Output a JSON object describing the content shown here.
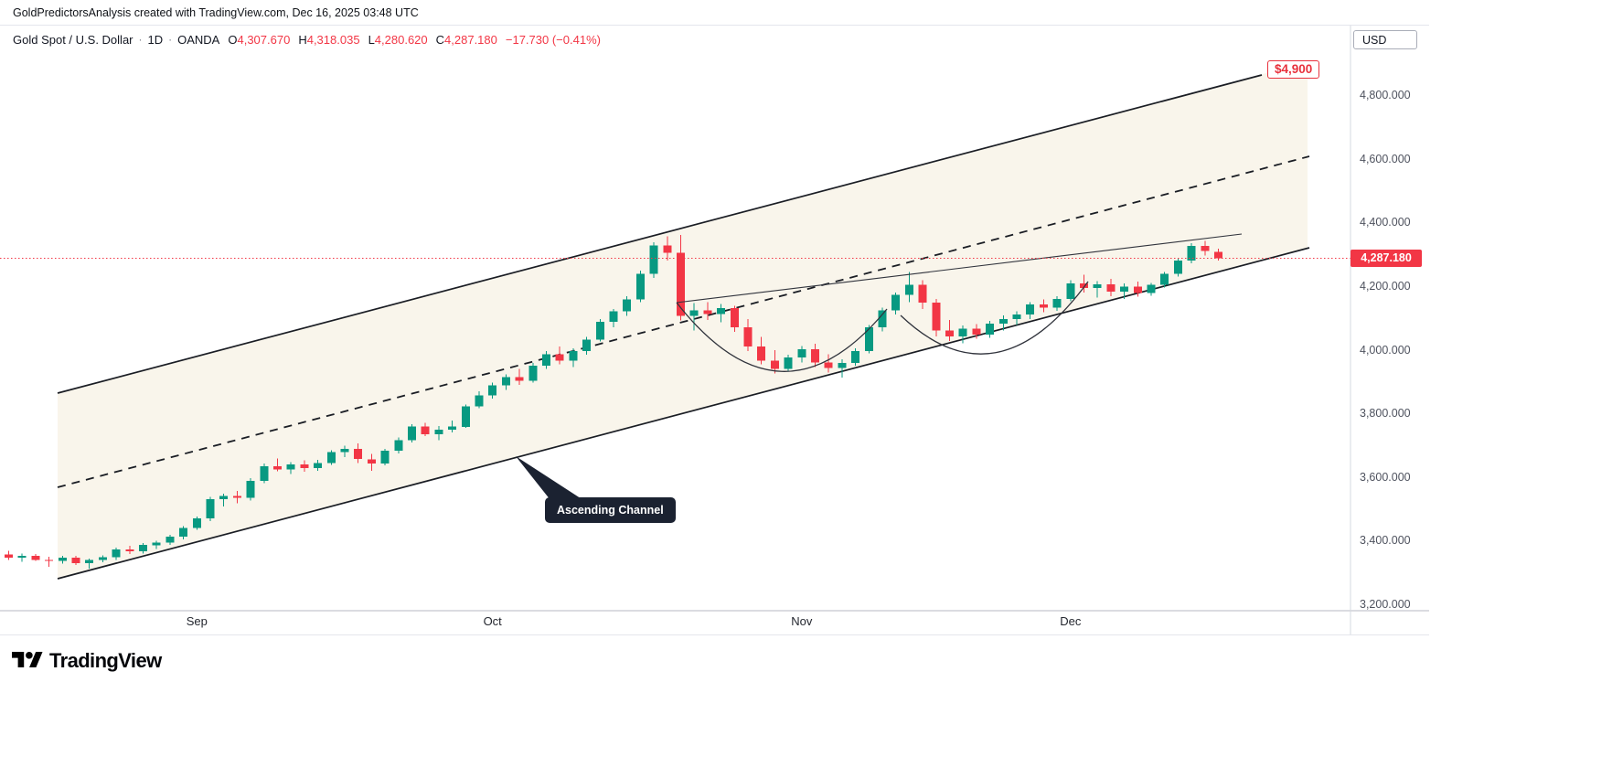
{
  "attribution": "GoldPredictorsAnalysis created with TradingView.com, Dec 16, 2025 03:48 UTC",
  "header": {
    "symbol": "Gold Spot / U.S. Dollar",
    "separator": "·",
    "interval": "1D",
    "exchange": "OANDA",
    "ohlc": [
      {
        "label": "O",
        "value": "4,307.670"
      },
      {
        "label": "H",
        "value": "4,318.035"
      },
      {
        "label": "L",
        "value": "4,280.620"
      },
      {
        "label": "C",
        "value": "4,287.180"
      }
    ],
    "change": "−17.730 (−0.41%)"
  },
  "price_axis": {
    "currency": "USD",
    "ticks": [
      {
        "price": 4800,
        "label": "4,800.000"
      },
      {
        "price": 4600,
        "label": "4,600.000"
      },
      {
        "price": 4400,
        "label": "4,400.000"
      },
      {
        "price": 4200,
        "label": "4,200.000"
      },
      {
        "price": 4000,
        "label": "4,000.000"
      },
      {
        "price": 3800,
        "label": "3,800.000"
      },
      {
        "price": 3600,
        "label": "3,600.000"
      },
      {
        "price": 3400,
        "label": "3,400.000"
      },
      {
        "price": 3200,
        "label": "3,200.000"
      }
    ],
    "last_price": {
      "value": 4287.18,
      "label": "4,287.180"
    }
  },
  "time_axis": {
    "months": [
      {
        "label": "Sep",
        "index": 14
      },
      {
        "label": "Oct",
        "index": 36
      },
      {
        "label": "Nov",
        "index": 59
      },
      {
        "label": "Dec",
        "index": 79
      }
    ]
  },
  "annotations": {
    "target_label": "$4,900",
    "channel_label": "Ascending Channel"
  },
  "footer": {
    "brand": "TradingView"
  },
  "colors": {
    "up": "#089981",
    "down": "#f23645",
    "accent_red": "#f23645",
    "line": "#1a1d24"
  },
  "chart_data": {
    "type": "candlestick",
    "symbol": "Gold Spot / U.S. Dollar (XAU/USD)",
    "exchange": "OANDA",
    "timeframe": "1D",
    "y_axis": {
      "tick_prices": [
        4800,
        4600,
        4400,
        4200,
        4000,
        3800,
        3600,
        3400,
        3200
      ],
      "visible_range": [
        3180,
        5018
      ]
    },
    "x_axis": {
      "month_labels": [
        "Sep",
        "Oct",
        "Nov",
        "Dec"
      ],
      "month_start_indices": [
        14,
        36,
        59,
        79
      ]
    },
    "last_bar": {
      "open": 4307.67,
      "high": 4318.035,
      "low": 4280.62,
      "close": 4287.18,
      "change": -17.73,
      "change_pct": -0.41
    },
    "drawings": {
      "ascending_channel": {
        "label": "Ascending Channel",
        "upper_line_prices": [
          3864,
          4863
        ],
        "midline_prices": [
          3568,
          4608
        ],
        "lower_line_prices": [
          3281,
          4320
        ],
        "style": "solid outer lines, dashed midline, shaded interior"
      },
      "rounding_bottoms": [
        {
          "start_index": 50,
          "end_index": 65,
          "rim_price": 4148,
          "bottom_price": 3930
        },
        {
          "start_index": 66,
          "end_index": 80,
          "rim_price": 4108,
          "bottom_price": 3992
        }
      ],
      "resistance_trendline_prices": [
        4148,
        4373
      ],
      "price_target_label": "$4,900",
      "last_price_line": 4287.18
    },
    "candles": [
      [
        3356,
        3368,
        3340,
        3346
      ],
      [
        3346,
        3360,
        3334,
        3352
      ],
      [
        3352,
        3358,
        3336,
        3340
      ],
      [
        3340,
        3350,
        3318,
        3336
      ],
      [
        3336,
        3352,
        3328,
        3346
      ],
      [
        3346,
        3352,
        3324,
        3330
      ],
      [
        3330,
        3344,
        3312,
        3340
      ],
      [
        3340,
        3354,
        3332,
        3348
      ],
      [
        3348,
        3378,
        3340,
        3372
      ],
      [
        3372,
        3384,
        3358,
        3366
      ],
      [
        3366,
        3392,
        3360,
        3386
      ],
      [
        3386,
        3400,
        3374,
        3394
      ],
      [
        3394,
        3418,
        3386,
        3412
      ],
      [
        3412,
        3446,
        3404,
        3440
      ],
      [
        3440,
        3476,
        3434,
        3470
      ],
      [
        3470,
        3538,
        3462,
        3530
      ],
      [
        3530,
        3548,
        3508,
        3540
      ],
      [
        3540,
        3556,
        3518,
        3534
      ],
      [
        3534,
        3596,
        3526,
        3588
      ],
      [
        3588,
        3642,
        3580,
        3634
      ],
      [
        3634,
        3658,
        3618,
        3624
      ],
      [
        3624,
        3646,
        3610,
        3640
      ],
      [
        3640,
        3652,
        3616,
        3628
      ],
      [
        3628,
        3654,
        3620,
        3644
      ],
      [
        3644,
        3684,
        3638,
        3678
      ],
      [
        3678,
        3698,
        3662,
        3688
      ],
      [
        3688,
        3706,
        3644,
        3656
      ],
      [
        3656,
        3672,
        3620,
        3642
      ],
      [
        3642,
        3688,
        3636,
        3682
      ],
      [
        3682,
        3724,
        3674,
        3716
      ],
      [
        3716,
        3766,
        3708,
        3758
      ],
      [
        3758,
        3770,
        3728,
        3734
      ],
      [
        3734,
        3760,
        3716,
        3748
      ],
      [
        3748,
        3778,
        3740,
        3758
      ],
      [
        3758,
        3828,
        3754,
        3822
      ],
      [
        3822,
        3870,
        3816,
        3856
      ],
      [
        3856,
        3896,
        3846,
        3888
      ],
      [
        3888,
        3922,
        3874,
        3914
      ],
      [
        3914,
        3940,
        3890,
        3902
      ],
      [
        3902,
        3958,
        3896,
        3950
      ],
      [
        3950,
        3996,
        3940,
        3986
      ],
      [
        3986,
        4010,
        3954,
        3966
      ],
      [
        3966,
        4004,
        3946,
        3996
      ],
      [
        3996,
        4040,
        3984,
        4032
      ],
      [
        4032,
        4096,
        4026,
        4088
      ],
      [
        4088,
        4128,
        4070,
        4120
      ],
      [
        4120,
        4168,
        4106,
        4158
      ],
      [
        4158,
        4248,
        4150,
        4238
      ],
      [
        4238,
        4338,
        4226,
        4328
      ],
      [
        4328,
        4356,
        4280,
        4304
      ],
      [
        4304,
        4360,
        4092,
        4106
      ],
      [
        4106,
        4146,
        4060,
        4124
      ],
      [
        4124,
        4150,
        4094,
        4112
      ],
      [
        4112,
        4144,
        4086,
        4130
      ],
      [
        4130,
        4138,
        4056,
        4070
      ],
      [
        4070,
        4096,
        3996,
        4010
      ],
      [
        4010,
        4040,
        3954,
        3966
      ],
      [
        3966,
        3998,
        3926,
        3940
      ],
      [
        3940,
        3984,
        3934,
        3976
      ],
      [
        3976,
        4012,
        3960,
        4002
      ],
      [
        4002,
        4018,
        3946,
        3960
      ],
      [
        3960,
        3986,
        3928,
        3942
      ],
      [
        3942,
        3970,
        3912,
        3958
      ],
      [
        3958,
        4004,
        3950,
        3996
      ],
      [
        3996,
        4078,
        3988,
        4070
      ],
      [
        4070,
        4132,
        4058,
        4124
      ],
      [
        4124,
        4180,
        4110,
        4172
      ],
      [
        4172,
        4244,
        4150,
        4204
      ],
      [
        4204,
        4218,
        4128,
        4148
      ],
      [
        4148,
        4160,
        4042,
        4060
      ],
      [
        4060,
        4094,
        4028,
        4042
      ],
      [
        4042,
        4076,
        4020,
        4066
      ],
      [
        4066,
        4080,
        4034,
        4048
      ],
      [
        4048,
        4090,
        4038,
        4082
      ],
      [
        4082,
        4108,
        4060,
        4096
      ],
      [
        4096,
        4120,
        4078,
        4110
      ],
      [
        4110,
        4150,
        4096,
        4142
      ],
      [
        4142,
        4158,
        4118,
        4132
      ],
      [
        4132,
        4168,
        4122,
        4160
      ],
      [
        4160,
        4218,
        4152,
        4208
      ],
      [
        4208,
        4236,
        4180,
        4194
      ],
      [
        4194,
        4216,
        4164,
        4206
      ],
      [
        4206,
        4222,
        4168,
        4182
      ],
      [
        4182,
        4208,
        4160,
        4198
      ],
      [
        4198,
        4214,
        4166,
        4178
      ],
      [
        4178,
        4210,
        4170,
        4204
      ],
      [
        4204,
        4244,
        4196,
        4238
      ],
      [
        4238,
        4286,
        4230,
        4280
      ],
      [
        4280,
        4334,
        4272,
        4326
      ],
      [
        4326,
        4342,
        4296,
        4310
      ],
      [
        4307.67,
        4318.035,
        4280.62,
        4287.18
      ]
    ]
  }
}
